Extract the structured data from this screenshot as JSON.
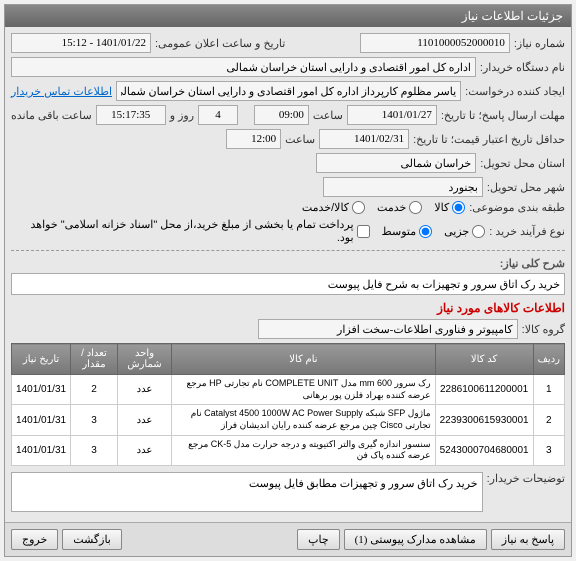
{
  "panel_title": "جزئیات اطلاعات نیاز",
  "labels": {
    "need_no": "شماره نیاز:",
    "announce_dt": "تاریخ و ساعت اعلان عمومی:",
    "buyer_org": "نام دستگاه خریدار:",
    "requester": "ایجاد کننده درخواست:",
    "response_deadline": "مهلت ارسال پاسخ؛ تا تاریخ:",
    "price_validity": "حداقل تاریخ اعتبار قیمت؛ تا تاریخ:",
    "province": "استان محل تحویل:",
    "city": "شهر محل تحویل:",
    "packaging": "طبقه بندی موضوعی:",
    "purchase_type": "نوع فرآیند خرید :",
    "hour_lbl": "ساعت",
    "day_and": "روز و",
    "remaining": "ساعت باقی مانده",
    "need_desc_title": "شرح کلی نیاز:",
    "goods_section": "اطلاعات کالاهای مورد نیاز",
    "goods_group": "گروه کالا:",
    "buyer_notes": "توضیحات خریدار:",
    "contact_link": "اطلاعات تماس خریدار"
  },
  "values": {
    "need_no": "1101000052000010",
    "announce_dt": "1401/01/22 - 15:12",
    "buyer_org": "اداره کل امور اقتصادی و دارایی استان خراسان شمالی",
    "requester": "یاسر مظلوم کارپرداز اداره کل امور اقتصادی و دارایی استان خراسان شمالی",
    "resp_date": "1401/01/27",
    "resp_time": "09:00",
    "days_left": "4",
    "time_left": "15:17:35",
    "valid_date": "1401/02/31",
    "valid_time": "12:00",
    "province": "خراسان شمالی",
    "city": "بجنورد",
    "need_desc": "خرید رک اتاق سرور و تجهیزات به شرح فایل پیوست",
    "goods_group": "کامپیوتر و فناوری اطلاعات-سخت افزار",
    "buyer_notes": "خرید رک اتاق سرور و تجهیزات مطابق فایل پیوست"
  },
  "packaging_opts": {
    "goods": "کالا",
    "service": "خدمت",
    "both": "کالا/خدمت"
  },
  "purchase_opts": {
    "low": "جزیی",
    "mid": "متوسط",
    "note": "پرداخت تمام یا بخشی از مبلغ خرید،از محل \"اسناد خزانه اسلامی\" خواهد بود."
  },
  "table": {
    "headers": {
      "row": "ردیف",
      "code": "کد کالا",
      "name": "نام کالا",
      "unit": "واحد شمارش",
      "qty": "تعداد / مقدار",
      "date": "تاریخ نیاز"
    },
    "rows": [
      {
        "r": "1",
        "code": "2286100611200001",
        "name": "رک سرور 600 mm مدل COMPLETE UNIT نام تجارتی HP مرجع عرضه کننده بهراد فلزن پور برهانی",
        "unit": "عدد",
        "qty": "2",
        "date": "1401/01/31"
      },
      {
        "r": "2",
        "code": "2239300615930001",
        "name": "ماژول SFP شبکه Catalyst 4500 1000W AC Power Supply نام تجارتی Cisco چین مرجع عرضه کننده رایان اندیشان فراز",
        "unit": "عدد",
        "qty": "3",
        "date": "1401/01/31"
      },
      {
        "r": "3",
        "code": "5243000704680001",
        "name": "سنسور اندازه گیری والتر اکتیویته و درجه حرارت مدل CK-5 مرجع عرضه کننده پاک فن",
        "unit": "عدد",
        "qty": "3",
        "date": "1401/01/31"
      }
    ]
  },
  "buttons": {
    "respond": "پاسخ به نیاز",
    "view_docs": "مشاهده مدارک پیوستی (1)",
    "print": "چاپ",
    "back": "بازگشت",
    "exit": "خروج"
  }
}
